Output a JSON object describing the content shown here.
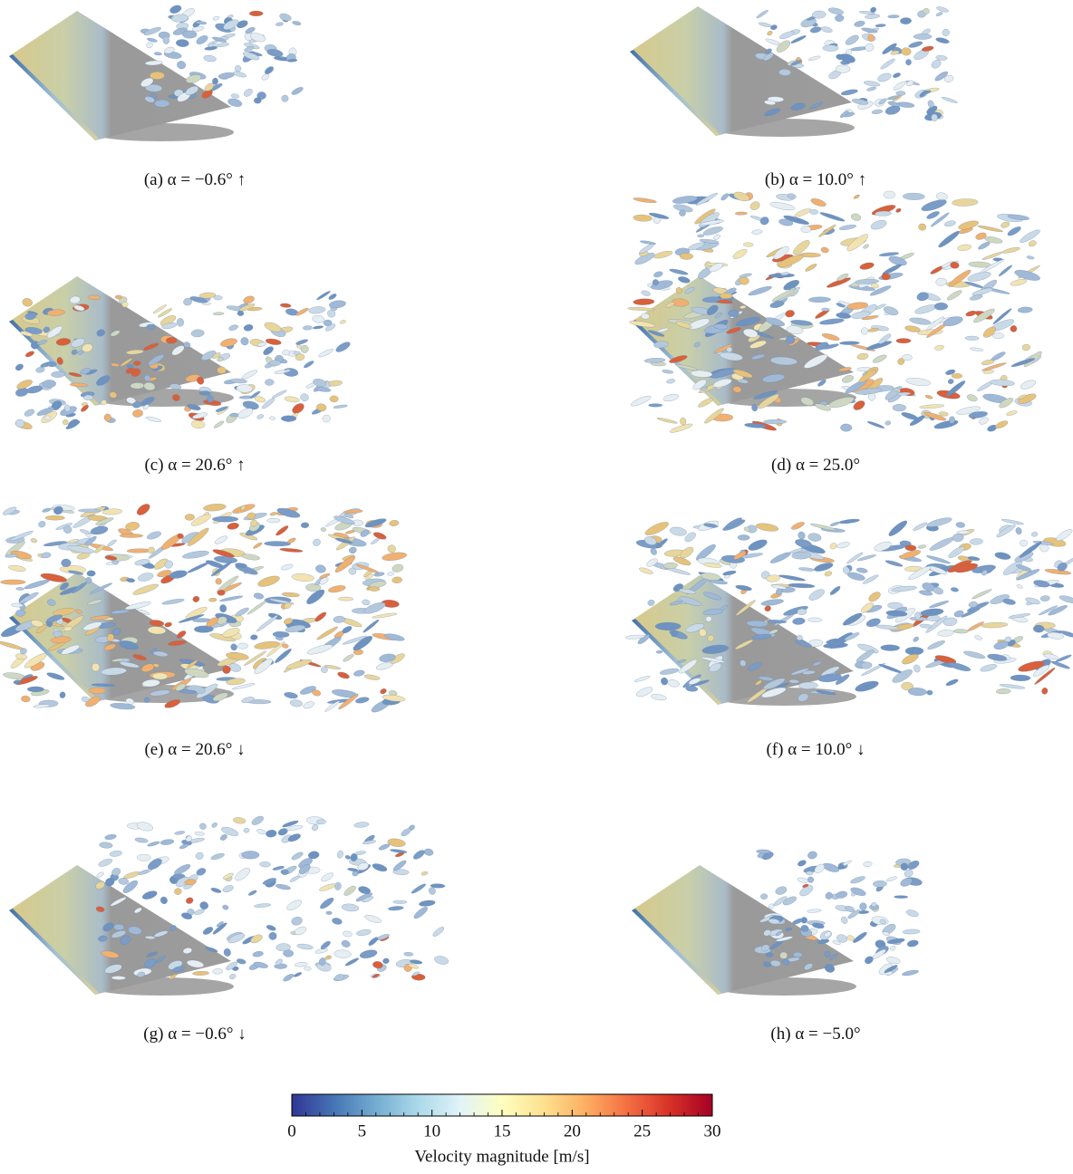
{
  "panels": [
    {
      "label": "(a)",
      "caption": "α = −0.6° ↑"
    },
    {
      "label": "(b)",
      "caption": "α = 10.0° ↑"
    },
    {
      "label": "(c)",
      "caption": "α = 20.6° ↑"
    },
    {
      "label": "(d)",
      "caption": "α = 25.0°"
    },
    {
      "label": "(e)",
      "caption": "α = 20.6° ↓"
    },
    {
      "label": "(f)",
      "caption": "α = 10.0° ↓"
    },
    {
      "label": "(g)",
      "caption": "α = −0.6° ↓"
    },
    {
      "label": "(h)",
      "caption": "α = −5.0°"
    }
  ],
  "colorbar": {
    "label": "Velocity magnitude [m/s]",
    "lim": [
      0,
      30
    ],
    "ticks": [
      0,
      5,
      10,
      15,
      20,
      25,
      30
    ]
  }
}
